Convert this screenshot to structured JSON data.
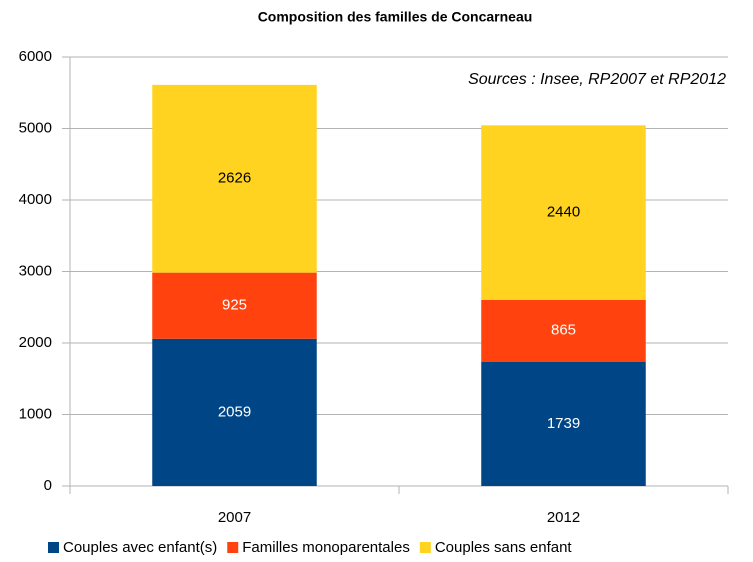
{
  "chart_data": {
    "type": "stacked_bar",
    "title": "Composition des familles de Concarneau",
    "annotation": "Sources : Insee, RP2007 et RP2012",
    "categories": [
      "2007",
      "2012"
    ],
    "series": [
      {
        "name": "Couples avec enfant(s)",
        "color": "#004586",
        "values": [
          2059,
          1739
        ]
      },
      {
        "name": "Familles monoparentales",
        "color": "#ff420e",
        "values": [
          925,
          865
        ]
      },
      {
        "name": "Couples sans enfant",
        "color": "#ffd320",
        "values": [
          2626,
          2440
        ]
      }
    ],
    "ylim": [
      0,
      6000
    ],
    "yticks": [
      0,
      1000,
      2000,
      3000,
      4000,
      5000,
      6000
    ],
    "grid": true,
    "legend": "bottom"
  }
}
